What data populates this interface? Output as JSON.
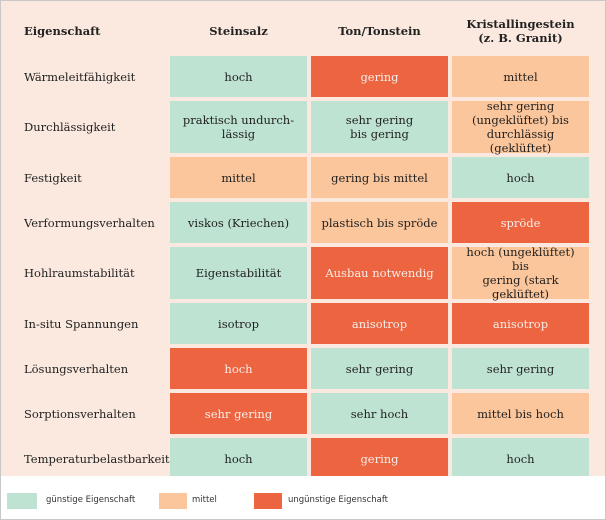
{
  "table": {
    "headers": [
      "Eigenschaft",
      "Steinsalz",
      "Ton/Tonstein",
      "Kristallingestein\n(z. B. Granit)"
    ],
    "rows": [
      {
        "property": "Wärmeleitfähigkeit",
        "cells": [
          {
            "text": "hoch",
            "rating": "good"
          },
          {
            "text": "gering",
            "rating": "bad"
          },
          {
            "text": "mittel",
            "rating": "mid"
          }
        ]
      },
      {
        "property": "Durchlässigkeit",
        "cells": [
          {
            "text": "praktisch undurch-\nlässig",
            "rating": "good"
          },
          {
            "text": "sehr gering\nbis gering",
            "rating": "good"
          },
          {
            "text": "sehr gering\n(ungeklüftet) bis\ndurchlässig (geklüftet)",
            "rating": "mid"
          }
        ]
      },
      {
        "property": "Festigkeit",
        "cells": [
          {
            "text": "mittel",
            "rating": "mid"
          },
          {
            "text": "gering bis mittel",
            "rating": "mid"
          },
          {
            "text": "hoch",
            "rating": "good"
          }
        ]
      },
      {
        "property": "Verformungsverhalten",
        "cells": [
          {
            "text": "viskos (Kriechen)",
            "rating": "good"
          },
          {
            "text": "plastisch bis spröde",
            "rating": "mid"
          },
          {
            "text": "spröde",
            "rating": "bad"
          }
        ]
      },
      {
        "property": "Hohlraumstabilität",
        "cells": [
          {
            "text": "Eigenstabilität",
            "rating": "good"
          },
          {
            "text": "Ausbau notwendig",
            "rating": "bad"
          },
          {
            "text": "hoch (ungeklüftet) bis\ngering (stark geklüftet)",
            "rating": "mid"
          }
        ]
      },
      {
        "property": "In-situ Spannungen",
        "cells": [
          {
            "text": "isotrop",
            "rating": "good"
          },
          {
            "text": "anisotrop",
            "rating": "bad"
          },
          {
            "text": "anisotrop",
            "rating": "bad"
          }
        ]
      },
      {
        "property": "Lösungsverhalten",
        "cells": [
          {
            "text": "hoch",
            "rating": "bad"
          },
          {
            "text": "sehr gering",
            "rating": "good"
          },
          {
            "text": "sehr gering",
            "rating": "good"
          }
        ]
      },
      {
        "property": "Sorptionsverhalten",
        "cells": [
          {
            "text": "sehr gering",
            "rating": "bad"
          },
          {
            "text": "sehr hoch",
            "rating": "good"
          },
          {
            "text": "mittel bis hoch",
            "rating": "mid"
          }
        ]
      },
      {
        "property": "Temperaturbelastbarkeit",
        "cells": [
          {
            "text": "hoch",
            "rating": "good"
          },
          {
            "text": "gering",
            "rating": "bad"
          },
          {
            "text": "hoch",
            "rating": "good"
          }
        ]
      }
    ]
  },
  "legend": [
    {
      "rating": "good",
      "label": "günstige Eigenschaft",
      "color": "#bfe3d3"
    },
    {
      "rating": "mid",
      "label": "mittel",
      "color": "#fbc69b"
    },
    {
      "rating": "bad",
      "label": "ungünstige Eigenschaft",
      "color": "#ec6440"
    }
  ]
}
